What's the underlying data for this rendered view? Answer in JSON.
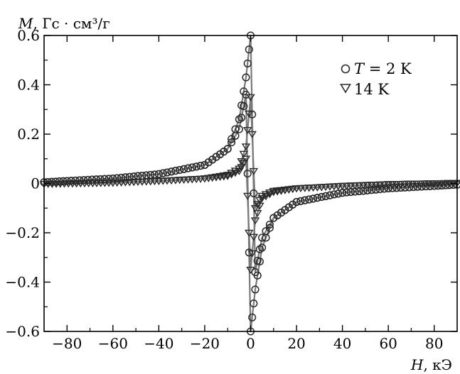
{
  "chart_data": {
    "type": "scatter",
    "y_axis_title": {
      "var": "M",
      "rest": ", Гс · см³/г"
    },
    "x_axis_title": {
      "var": "H",
      "rest": ", кЭ"
    },
    "xlim": [
      -90,
      90
    ],
    "ylim": [
      -0.6,
      0.6
    ],
    "x_ticks": [
      -80,
      -60,
      -40,
      -20,
      0,
      20,
      40,
      60,
      80
    ],
    "x_tick_labels": [
      "−80",
      "−60",
      "−40",
      "−20",
      "0",
      "20",
      "40",
      "60",
      "80"
    ],
    "y_ticks": [
      -0.6,
      -0.4,
      -0.2,
      0,
      0.2,
      0.4,
      0.6
    ],
    "y_tick_labels": [
      "−0.6",
      "−0.4",
      "−0.2",
      "0",
      "0.2",
      "0.4",
      "0.6"
    ],
    "grid": false,
    "legend_position": "top-right",
    "series": [
      {
        "name": "T = 2 K",
        "legend_var": "T",
        "legend_rest": " = 2 K",
        "marker": "circle",
        "peak_magnetization": 0.6,
        "loop_branches": [
          {
            "branch": "descending",
            "x": [
              -90,
              -80,
              -60,
              -40,
              -20,
              -10,
              -5,
              -2,
              0,
              2,
              5,
              10,
              20,
              40,
              60,
              80,
              90
            ],
            "y": [
              0.005,
              0.01,
              0.02,
              0.038,
              0.075,
              0.14,
              0.26,
              0.43,
              0.6,
              -0.36,
              -0.22,
              -0.14,
              -0.075,
              -0.038,
              -0.02,
              -0.01,
              -0.005
            ]
          },
          {
            "branch": "ascending",
            "x": [
              90,
              80,
              60,
              40,
              20,
              10,
              5,
              2,
              0,
              -2,
              -5,
              -10,
              -20,
              -40,
              -60,
              -80,
              -90
            ],
            "y": [
              -0.005,
              -0.01,
              -0.02,
              -0.038,
              -0.075,
              -0.14,
              -0.26,
              -0.43,
              -0.6,
              0.36,
              0.22,
              0.14,
              0.075,
              0.038,
              0.02,
              0.01,
              0.005
            ]
          }
        ]
      },
      {
        "name": "14 K",
        "legend_var": "",
        "legend_rest": "14 K",
        "marker": "triangle-down",
        "peak_magnetization": 0.35,
        "loop_branches": [
          {
            "branch": "descending",
            "x": [
              -90,
              -60,
              -40,
              -20,
              -10,
              -5,
              -2,
              0,
              2,
              5,
              10,
              20,
              40,
              60,
              90
            ],
            "y": [
              -0.002,
              0.003,
              0.01,
              0.02,
              0.035,
              0.06,
              0.15,
              0.35,
              -0.1,
              -0.05,
              -0.03,
              -0.02,
              -0.01,
              -0.003,
              0.002
            ]
          },
          {
            "branch": "ascending",
            "x": [
              90,
              60,
              40,
              20,
              10,
              5,
              2,
              0,
              -2,
              -5,
              -10,
              -20,
              -40,
              -60,
              -90
            ],
            "y": [
              0.002,
              -0.003,
              -0.01,
              -0.02,
              -0.035,
              -0.06,
              -0.15,
              -0.35,
              0.1,
              0.05,
              0.03,
              0.02,
              0.01,
              0.003,
              -0.002
            ]
          }
        ]
      }
    ],
    "colors": {
      "marker_stroke": "#2a2a2a",
      "curve": "#7a7a7a",
      "axes": "#000000"
    }
  }
}
